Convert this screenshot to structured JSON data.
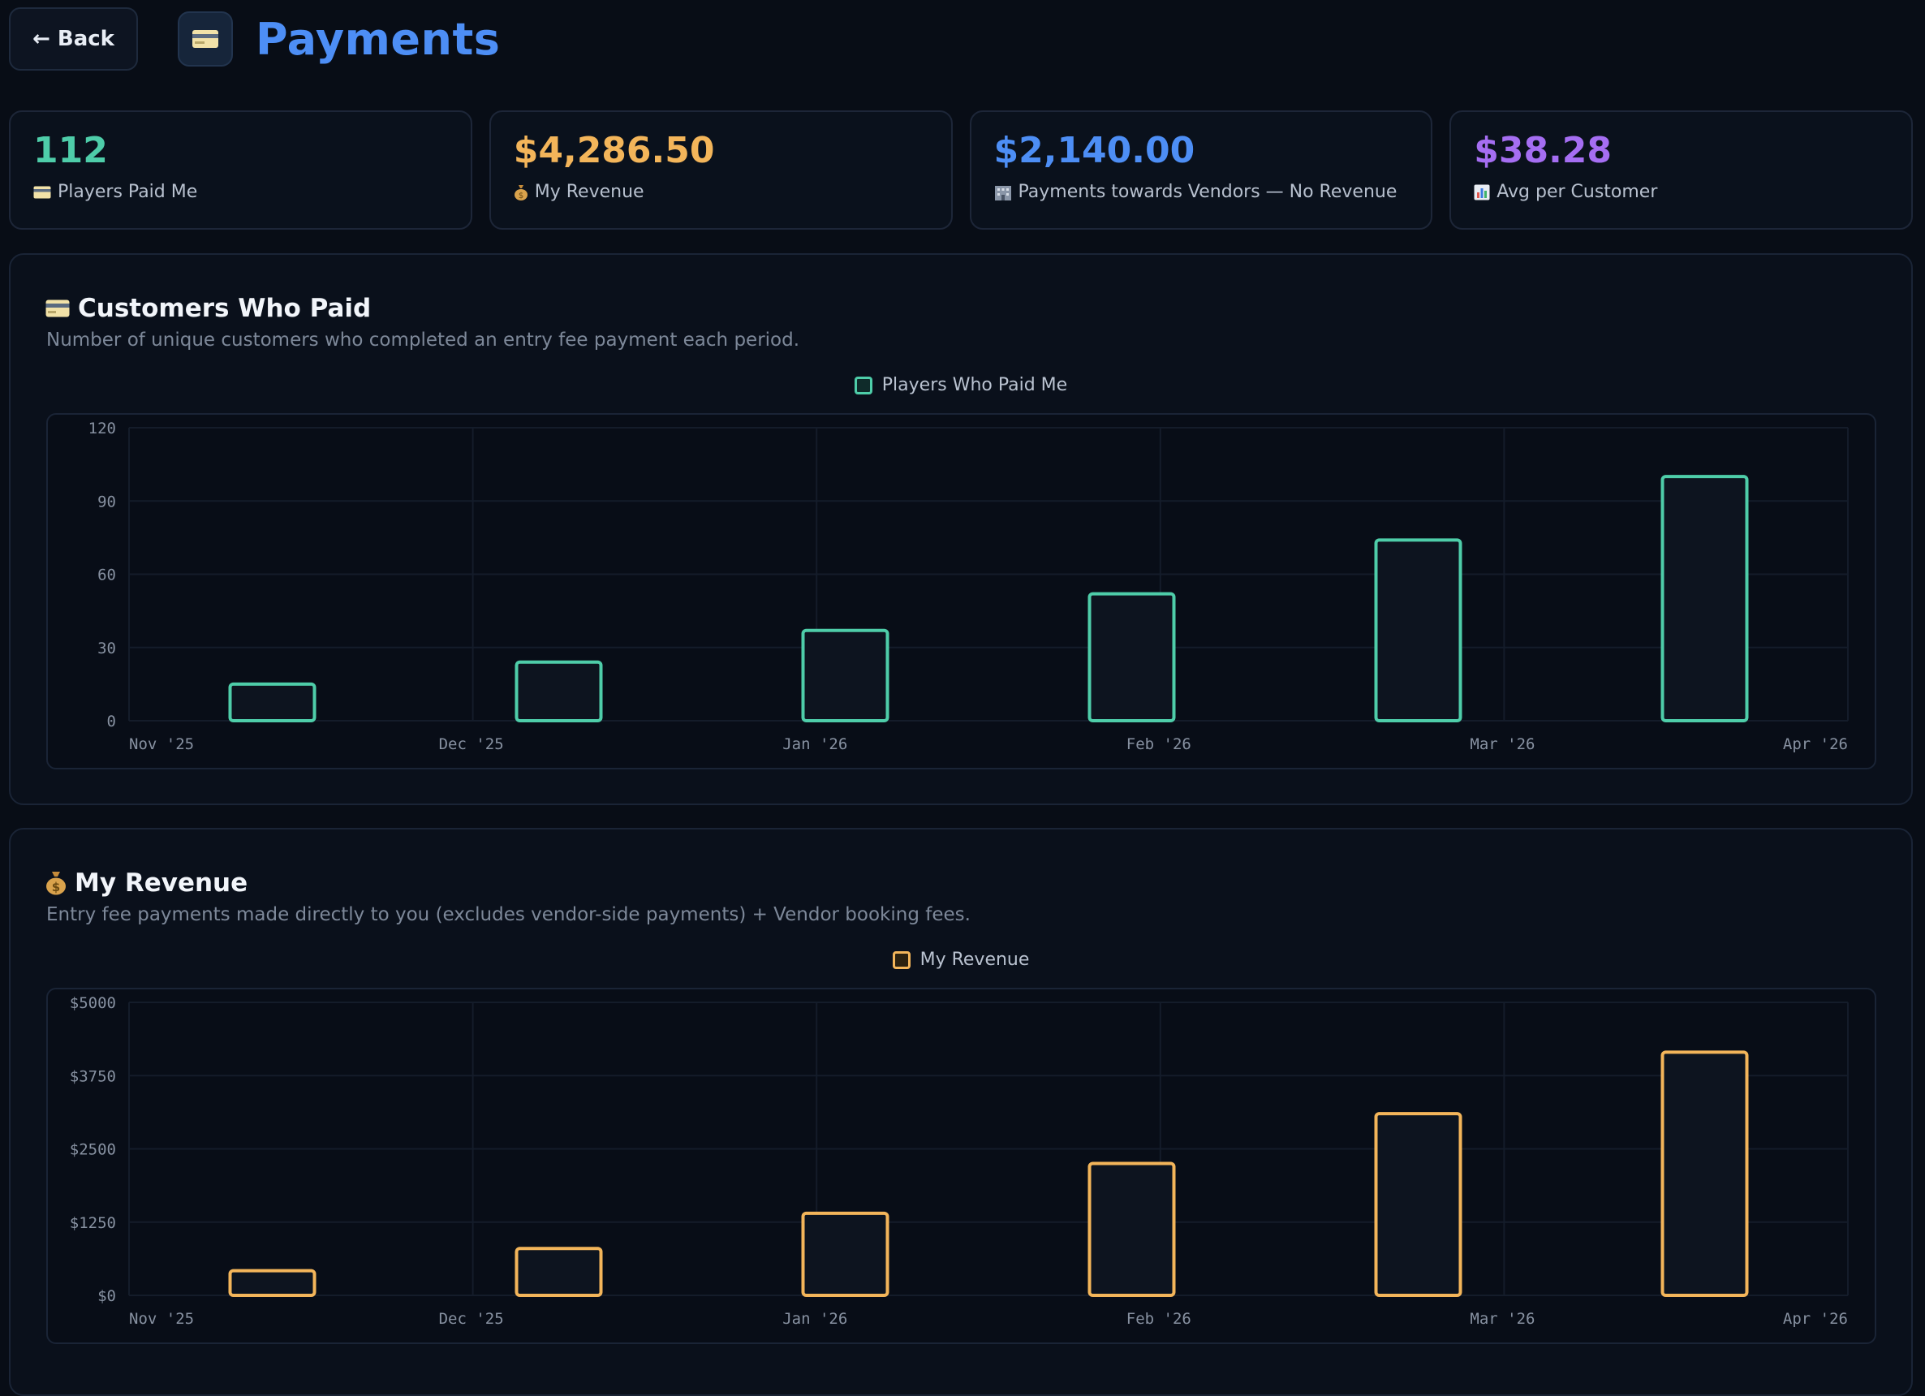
{
  "header": {
    "back_label": "← Back",
    "icon": "credit-card-icon",
    "title": "Payments"
  },
  "stats": [
    {
      "value": "112",
      "label": "Players Paid Me",
      "icon": "credit-card-icon",
      "color": "#4ecda9"
    },
    {
      "value": "$4,286.50",
      "label": "My Revenue",
      "icon": "money-bag-icon",
      "color": "#f3b55a"
    },
    {
      "value": "$2,140.00",
      "label": "Payments towards Vendors — No Revenue",
      "icon": "building-icon",
      "color": "#4d8ef5"
    },
    {
      "value": "$38.28",
      "label": "Avg per Customer",
      "icon": "bar-chart-icon",
      "color": "#a56ef2"
    }
  ],
  "panels": [
    {
      "title": "Customers Who Paid",
      "icon": "credit-card-icon",
      "subtitle": "Number of unique customers who completed an entry fee payment each period.",
      "legend": "Players Who Paid Me"
    },
    {
      "title": "My Revenue",
      "icon": "money-bag-icon",
      "subtitle": "Entry fee payments made directly to you (excludes vendor-side payments) + Vendor booking fees.",
      "legend": "My Revenue"
    }
  ],
  "chart_data": [
    {
      "type": "bar",
      "categories": [
        "Nov '25",
        "Dec '25",
        "Jan '26",
        "Feb '26",
        "Mar '26",
        "Apr '26"
      ],
      "x_tick_labels": [
        "Nov '25",
        "Dec '25",
        "Jan '26",
        "Feb '26",
        "Mar '26",
        "Apr '26"
      ],
      "series": [
        {
          "name": "Players Who Paid Me",
          "values": [
            15,
            24,
            37,
            52,
            74,
            100
          ],
          "color": "#4ecda9"
        }
      ],
      "ylim": [
        0,
        120
      ],
      "yticks": [
        0,
        30,
        60,
        90,
        120
      ],
      "ytick_labels": [
        "0",
        "30",
        "60",
        "90",
        "120"
      ],
      "grid": true,
      "legend": "top-center"
    },
    {
      "type": "bar",
      "categories": [
        "Nov '25",
        "Dec '25",
        "Jan '26",
        "Feb '26",
        "Mar '26",
        "Apr '26"
      ],
      "x_tick_labels": [
        "Nov '25",
        "Dec '25",
        "Jan '26",
        "Feb '26",
        "Mar '26",
        "Apr '26"
      ],
      "series": [
        {
          "name": "My Revenue",
          "values": [
            420,
            800,
            1400,
            2250,
            3100,
            4150
          ],
          "color": "#f3b55a"
        }
      ],
      "ylim": [
        0,
        5000
      ],
      "yticks": [
        0,
        1250,
        2500,
        3750,
        5000
      ],
      "ytick_labels": [
        "$0",
        "$1250",
        "$2500",
        "$3750",
        "$5000"
      ],
      "grid": true,
      "legend": "top-center"
    }
  ]
}
